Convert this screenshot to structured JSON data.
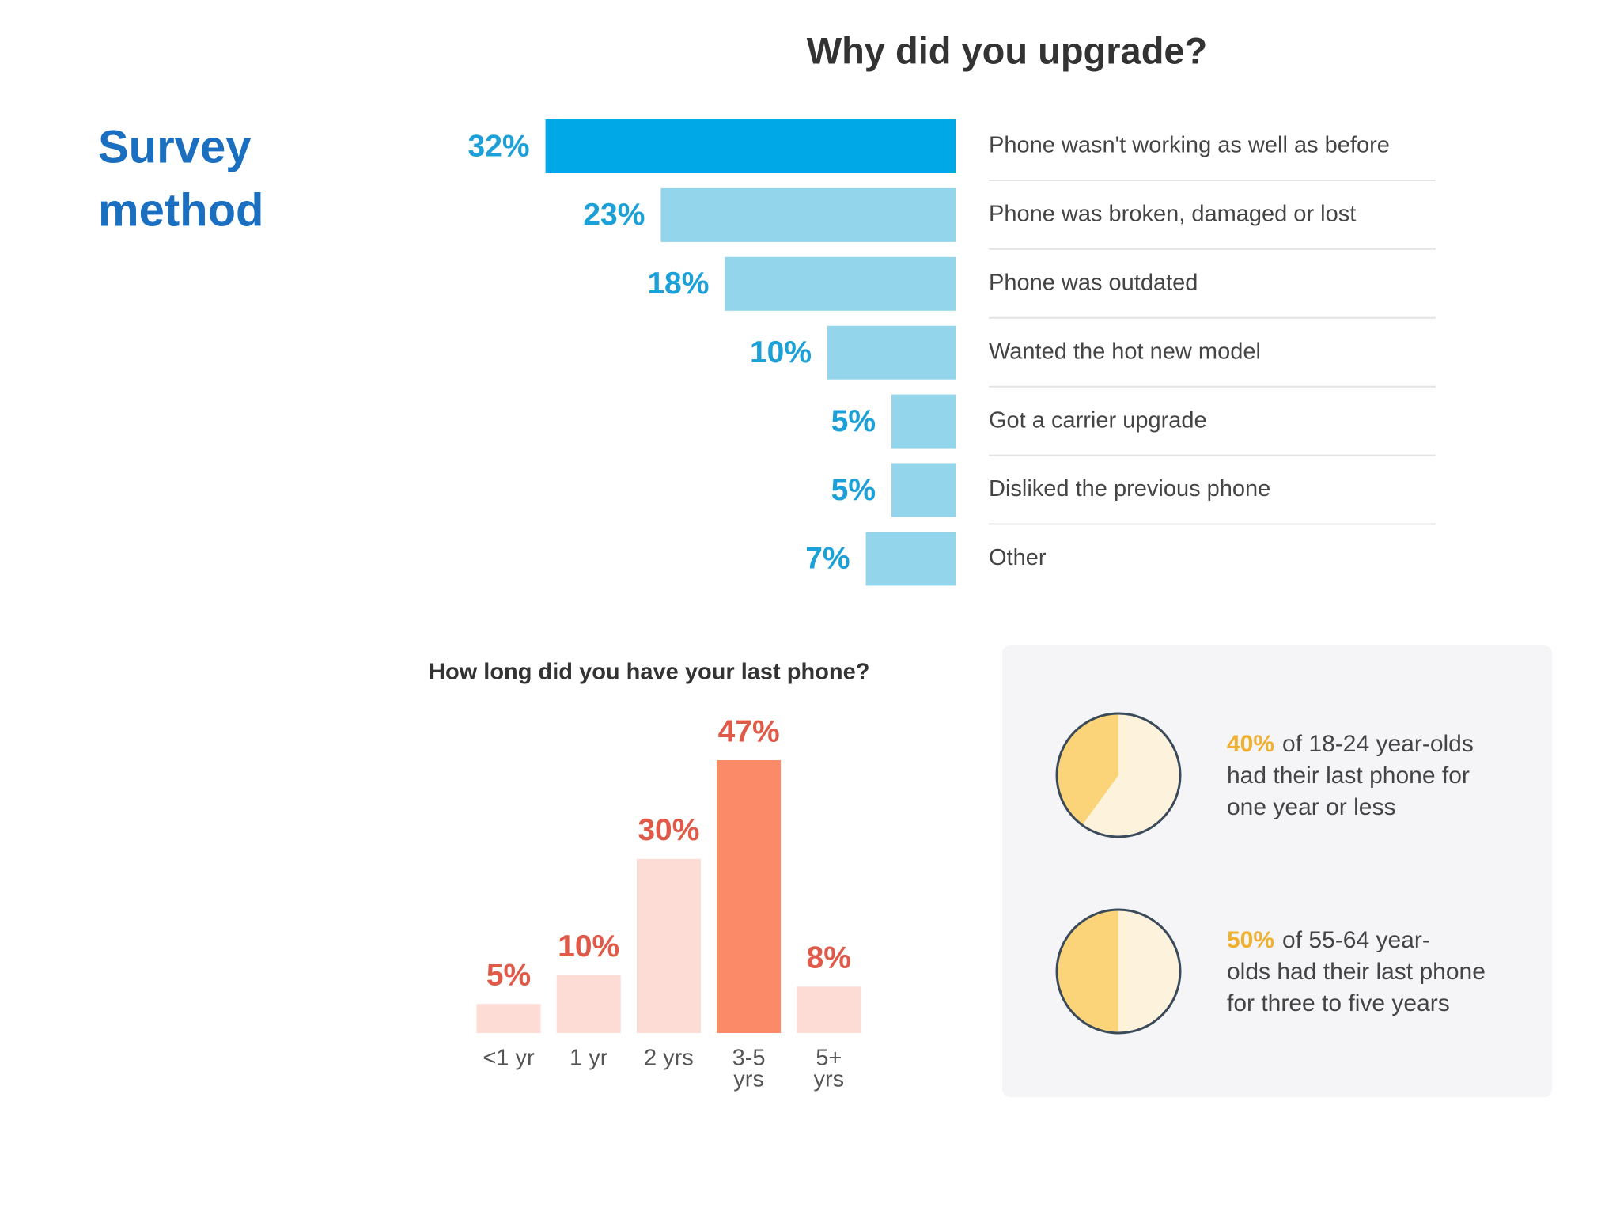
{
  "slide_title": [
    "Survey",
    "method"
  ],
  "chart_data": [
    {
      "type": "hbar",
      "title": "Why did you upgrade?",
      "categories": [
        "Phone wasn't working as well as before",
        "Phone was broken, damaged or lost",
        "Phone was outdated",
        "Wanted the hot new model",
        "Got a carrier upgrade",
        "Disliked the previous phone",
        "Other"
      ],
      "values": [
        32,
        23,
        18,
        10,
        5,
        5,
        7
      ],
      "value_labels": [
        "32%",
        "23%",
        "18%",
        "10%",
        "5%",
        "5%",
        "7%"
      ],
      "colors": [
        "#00a8e8",
        "#93d5ea",
        "#93d5ea",
        "#93d5ea",
        "#93d5ea",
        "#93d5ea",
        "#93d5ea"
      ],
      "label_color": "#1ba0d8"
    },
    {
      "type": "bar",
      "title": "How long did you have your last phone?",
      "categories": [
        [
          "<1 yr"
        ],
        [
          "1 yr"
        ],
        [
          "2 yrs"
        ],
        [
          "3-5",
          "yrs"
        ],
        [
          "5+",
          "yrs"
        ]
      ],
      "values": [
        5,
        10,
        30,
        47,
        8
      ],
      "value_labels": [
        "5%",
        "10%",
        "30%",
        "47%",
        "8%"
      ],
      "colors": [
        "#fcdcd4",
        "#fcdcd4",
        "#fcdcd4",
        "#fa8a68",
        "#fcdcd4"
      ],
      "label_color": "#e05a4a"
    },
    {
      "type": "pie",
      "value": 40,
      "value_label": "40%",
      "text": [
        "of 18-24 year-olds",
        "had their last phone for",
        "one year or less"
      ],
      "color": "#fbd47a",
      "rest_color": "#fdf3dc"
    },
    {
      "type": "pie",
      "value": 50,
      "value_label": "50%",
      "text": [
        "of 55-64 year-",
        "olds had their last phone",
        "for three to five years"
      ],
      "color": "#fbd47a",
      "rest_color": "#fdf3dc"
    }
  ]
}
